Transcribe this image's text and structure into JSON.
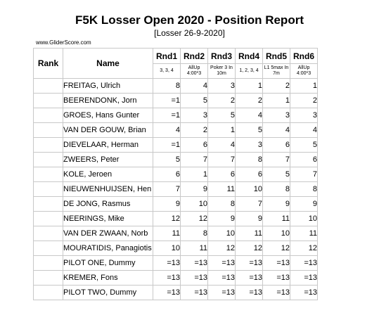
{
  "report": {
    "title": "F5K Losser Open 2020 - Position Report",
    "subtitle": "[Losser 26-9-2020]",
    "watermark": "www.GliderScore.com"
  },
  "table": {
    "rank_header": "Rank",
    "name_header": "Name",
    "rounds": [
      {
        "label": "Rnd1",
        "task": "3, 3, 4"
      },
      {
        "label": "Rnd2",
        "task": "AllUp 4:00*3"
      },
      {
        "label": "Rnd3",
        "task": "Poker 3 In 10m"
      },
      {
        "label": "Rnd4",
        "task": "1, 2, 3, 4"
      },
      {
        "label": "Rnd5",
        "task": "L1 5max In 7m"
      },
      {
        "label": "Rnd6",
        "task": "AllUp 4:00*3"
      }
    ],
    "rows": [
      {
        "rank": "",
        "name": "FREITAG, Ulrich",
        "values": [
          "8",
          "4",
          "3",
          "1",
          "2",
          "1"
        ]
      },
      {
        "rank": "",
        "name": "BEERENDONK, Jorn",
        "values": [
          "=1",
          "5",
          "2",
          "2",
          "1",
          "2"
        ]
      },
      {
        "rank": "",
        "name": "GROES, Hans Gunter",
        "values": [
          "=1",
          "3",
          "5",
          "4",
          "3",
          "3"
        ]
      },
      {
        "rank": "",
        "name": "VAN DER GOUW, Brian",
        "values": [
          "4",
          "2",
          "1",
          "5",
          "4",
          "4"
        ]
      },
      {
        "rank": "",
        "name": "DIEVELAAR, Herman",
        "values": [
          "=1",
          "6",
          "4",
          "3",
          "6",
          "5"
        ]
      },
      {
        "rank": "",
        "name": "ZWEERS, Peter",
        "values": [
          "5",
          "7",
          "7",
          "8",
          "7",
          "6"
        ]
      },
      {
        "rank": "",
        "name": "KOLE, Jeroen",
        "values": [
          "6",
          "1",
          "6",
          "6",
          "5",
          "7"
        ]
      },
      {
        "rank": "",
        "name": "NIEUWENHUIJSEN, Hen",
        "values": [
          "7",
          "9",
          "11",
          "10",
          "8",
          "8"
        ]
      },
      {
        "rank": "",
        "name": "DE JONG, Rasmus",
        "values": [
          "9",
          "10",
          "8",
          "7",
          "9",
          "9"
        ]
      },
      {
        "rank": "",
        "name": "NEERINGS, Mike",
        "values": [
          "12",
          "12",
          "9",
          "9",
          "11",
          "10"
        ]
      },
      {
        "rank": "",
        "name": "VAN DER ZWAAN, Norb",
        "values": [
          "11",
          "8",
          "10",
          "11",
          "10",
          "11"
        ]
      },
      {
        "rank": "",
        "name": "MOURATIDIS, Panagiotis",
        "values": [
          "10",
          "11",
          "12",
          "12",
          "12",
          "12"
        ]
      },
      {
        "rank": "",
        "name": "PILOT ONE, Dummy",
        "values": [
          "=13",
          "=13",
          "=13",
          "=13",
          "=13",
          "=13"
        ]
      },
      {
        "rank": "",
        "name": "KREMER, Fons",
        "values": [
          "=13",
          "=13",
          "=13",
          "=13",
          "=13",
          "=13"
        ]
      },
      {
        "rank": "",
        "name": "PILOT TWO, Dummy",
        "values": [
          "=13",
          "=13",
          "=13",
          "=13",
          "=13",
          "=13"
        ]
      }
    ]
  }
}
